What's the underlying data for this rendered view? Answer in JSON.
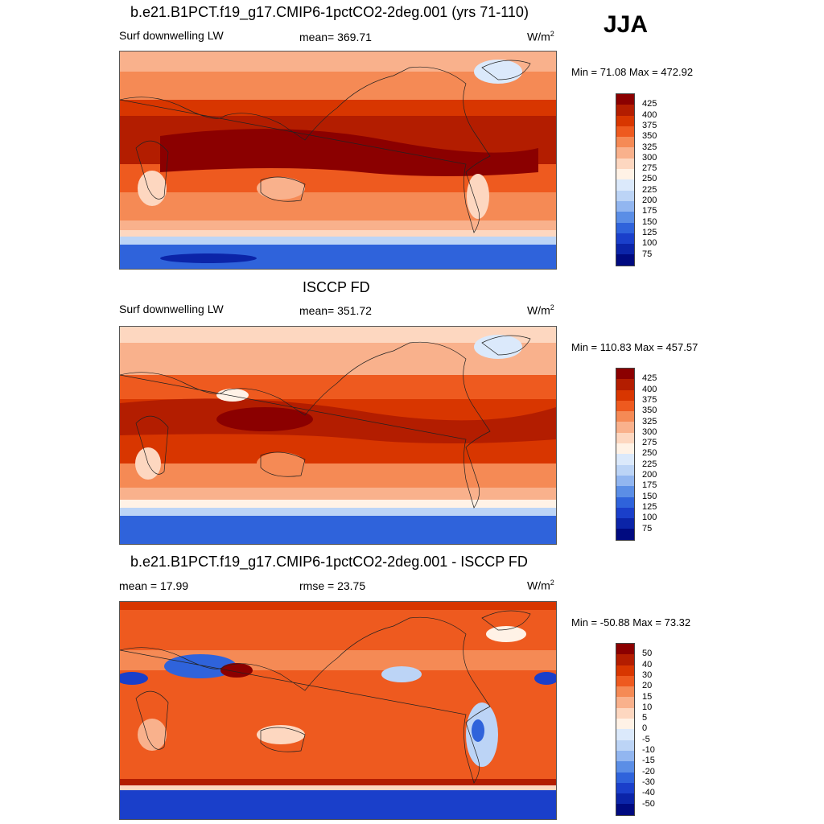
{
  "season": "JJA",
  "panels": [
    {
      "title": "b.e21.B1PCT.f19_g17.CMIP6-1pctCO2-2deg.001 (yrs 71-110)",
      "left": "Surf downwelling LW",
      "center": "mean= 369.71",
      "units": "W/m",
      "units_sup": "2",
      "minmax": "Min =  71.08 Max = 472.92"
    },
    {
      "title": "ISCCP FD",
      "left": "Surf downwelling LW",
      "center": "mean= 351.72",
      "units": "W/m",
      "units_sup": "2",
      "minmax": "Min = 110.83 Max = 457.57"
    },
    {
      "title": "b.e21.B1PCT.f19_g17.CMIP6-1pctCO2-2deg.001 - ISCCP FD",
      "left": "mean =  17.99",
      "center": "rmse =  23.75",
      "units": "W/m",
      "units_sup": "2",
      "minmax": "Min = -50.88 Max =  73.32"
    }
  ],
  "colorbar_abs": {
    "colors": [
      "#8b0000",
      "#b31d00",
      "#d83600",
      "#ee5a1f",
      "#f58a55",
      "#f9b18c",
      "#fdd7c0",
      "#fff2e6",
      "#dbe9fb",
      "#bcd4f6",
      "#92b6f0",
      "#5b8ee6",
      "#2f63db",
      "#1a3fca",
      "#0b24a8",
      "#000a80"
    ],
    "labels": [
      "425",
      "400",
      "375",
      "350",
      "325",
      "300",
      "275",
      "250",
      "225",
      "200",
      "175",
      "150",
      "125",
      "100",
      "75"
    ]
  },
  "colorbar_diff": {
    "colors": [
      "#8b0000",
      "#b31d00",
      "#d83600",
      "#ee5a1f",
      "#f58a55",
      "#f9b18c",
      "#fdd7c0",
      "#fff2e6",
      "#dbe9fb",
      "#bcd4f6",
      "#92b6f0",
      "#5b8ee6",
      "#2f63db",
      "#1a3fca",
      "#0b24a8",
      "#000a80"
    ],
    "labels": [
      "50",
      "40",
      "30",
      "20",
      "15",
      "10",
      "5",
      "0",
      "-5",
      "-10",
      "-15",
      "-20",
      "-30",
      "-40",
      "-50"
    ]
  }
}
